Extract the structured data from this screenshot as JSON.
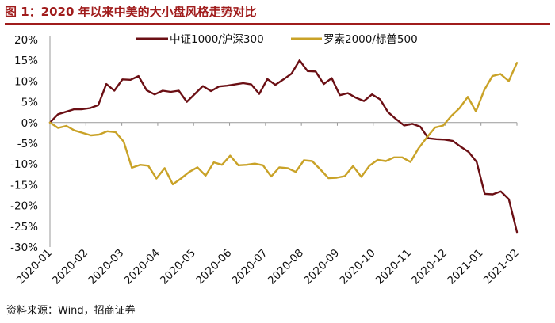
{
  "title": "图 1：2020 年以来中美的大小盘风格走势对比",
  "source": "资料来源：Wind，招商证券",
  "colors": {
    "title": "#a01c1c",
    "series1": "#6b0f14",
    "series2": "#c9a227",
    "axis": "#999999"
  },
  "chart_data": {
    "type": "line",
    "title": "",
    "xlabel": "",
    "ylabel": "",
    "ylim": [
      -30,
      20
    ],
    "y_ticks": [
      "20%",
      "15%",
      "10%",
      "5%",
      "0%",
      "-5%",
      "-10%",
      "-15%",
      "-20%",
      "-25%",
      "-30%"
    ],
    "x_ticks": [
      "2020-01",
      "2020-02",
      "2020-03",
      "2020-04",
      "2020-05",
      "2020-06",
      "2020-07",
      "2020-08",
      "2020-09",
      "2020-10",
      "2020-11",
      "2020-12",
      "2021-01",
      "2021-02"
    ],
    "legend": "top",
    "grid": false,
    "series": [
      {
        "name": "中证1000/沪深300",
        "values": [
          0.0,
          2.0,
          2.6,
          3.2,
          3.2,
          3.5,
          4.2,
          9.3,
          7.7,
          10.4,
          10.3,
          11.2,
          7.8,
          6.8,
          7.7,
          7.4,
          7.7,
          5.0,
          6.9,
          8.8,
          7.6,
          8.7,
          8.9,
          9.2,
          9.5,
          9.2,
          6.9,
          10.5,
          9.1,
          10.4,
          11.8,
          15.0,
          12.4,
          12.3,
          9.3,
          10.7,
          6.6,
          7.1,
          6.0,
          5.2,
          6.8,
          5.6,
          2.5,
          0.8,
          -0.7,
          -0.3,
          -1.0,
          -3.8,
          -4.0,
          -4.1,
          -4.4,
          -5.8,
          -7.1,
          -9.5,
          -17.2,
          -17.3,
          -16.6,
          -18.5,
          -26.4
        ]
      },
      {
        "name": "罗素2000/标普500",
        "values": [
          0.0,
          -1.3,
          -0.8,
          -1.9,
          -2.5,
          -3.1,
          -2.9,
          -2.1,
          -2.3,
          -4.6,
          -10.9,
          -10.2,
          -10.4,
          -13.5,
          -11.0,
          -14.9,
          -13.5,
          -11.9,
          -10.8,
          -12.8,
          -9.6,
          -10.2,
          -8.0,
          -10.3,
          -10.2,
          -9.9,
          -10.3,
          -13.0,
          -10.8,
          -11.0,
          -11.9,
          -9.1,
          -9.3,
          -11.3,
          -13.4,
          -13.3,
          -12.9,
          -10.5,
          -13.1,
          -10.4,
          -9.0,
          -9.3,
          -8.4,
          -8.4,
          -9.5,
          -6.2,
          -3.6,
          -1.2,
          -0.7,
          1.6,
          3.5,
          6.2,
          2.7,
          7.8,
          11.2,
          11.7,
          10.0,
          14.4
        ]
      }
    ]
  }
}
